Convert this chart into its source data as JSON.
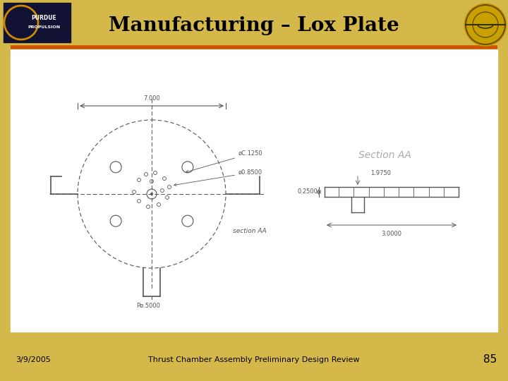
{
  "title": "Manufacturing – Lox Plate",
  "bg_color_light": "#d4b84a",
  "bg_color_dark": "#b89a20",
  "white_panel": "#ffffff",
  "title_color": "#000000",
  "orange_line_color": "#cc5500",
  "footer_date": "3/9/2005",
  "footer_center": "Thrust Chamber Assembly Preliminary Design Review",
  "footer_page": "85",
  "section_aa_label": "Section AA",
  "dim_7000": "7.000",
  "dim_od1250": "øC.1250",
  "dim_od8500": "ø0.8500",
  "dim_025": "0.2500",
  "dim_p05000": "Pø.5000",
  "dim_19750": "1.9750",
  "dim_025_right": "0.2500",
  "dim_3000": "3.0000",
  "section_aa_note": "section AA",
  "draw_color": "#777777",
  "draw_color_dark": "#555555"
}
